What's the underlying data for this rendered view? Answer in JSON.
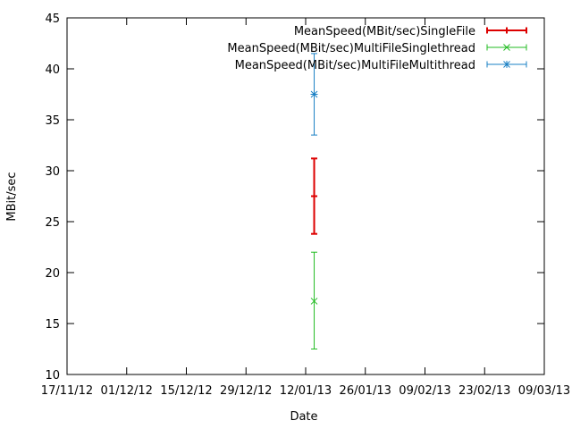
{
  "chart_data": {
    "type": "errorbar",
    "xlabel": "Date",
    "ylabel": "MBit/sec",
    "ylim": [
      10,
      45
    ],
    "yticks": [
      10,
      15,
      20,
      25,
      30,
      35,
      40,
      45
    ],
    "xlim": [
      "2012-11-17",
      "2013-03-09"
    ],
    "xticks": [
      "2012-11-17",
      "2012-12-01",
      "2012-12-15",
      "2012-12-29",
      "2013-01-12",
      "2013-01-26",
      "2013-02-09",
      "2013-02-23",
      "2013-03-09"
    ],
    "xtick_labels": [
      "17/11/12",
      "01/12/12",
      "15/12/12",
      "29/12/12",
      "12/01/13",
      "26/01/13",
      "09/02/13",
      "23/02/13",
      "09/03/13"
    ],
    "legend_position": "top-right",
    "grid": false,
    "series": [
      {
        "name": "MeanSpeed(MBit/sec)SingleFile",
        "color": "#dd0000",
        "marker": "tick",
        "points": [
          {
            "x": "2013-01-14",
            "y": 27.5,
            "ylow": 23.8,
            "yhigh": 31.2
          }
        ]
      },
      {
        "name": "MeanSpeed(MBit/sec)MultiFileSinglethread",
        "color": "#22bb22",
        "marker": "x",
        "points": [
          {
            "x": "2013-01-14",
            "y": 17.2,
            "ylow": 12.5,
            "yhigh": 22.0
          }
        ]
      },
      {
        "name": "MeanSpeed(MBit/sec)MultiFileMultithread",
        "color": "#1a80c4",
        "marker": "star",
        "points": [
          {
            "x": "2013-01-14",
            "y": 37.5,
            "ylow": 33.5,
            "yhigh": 41.5
          }
        ]
      }
    ]
  }
}
